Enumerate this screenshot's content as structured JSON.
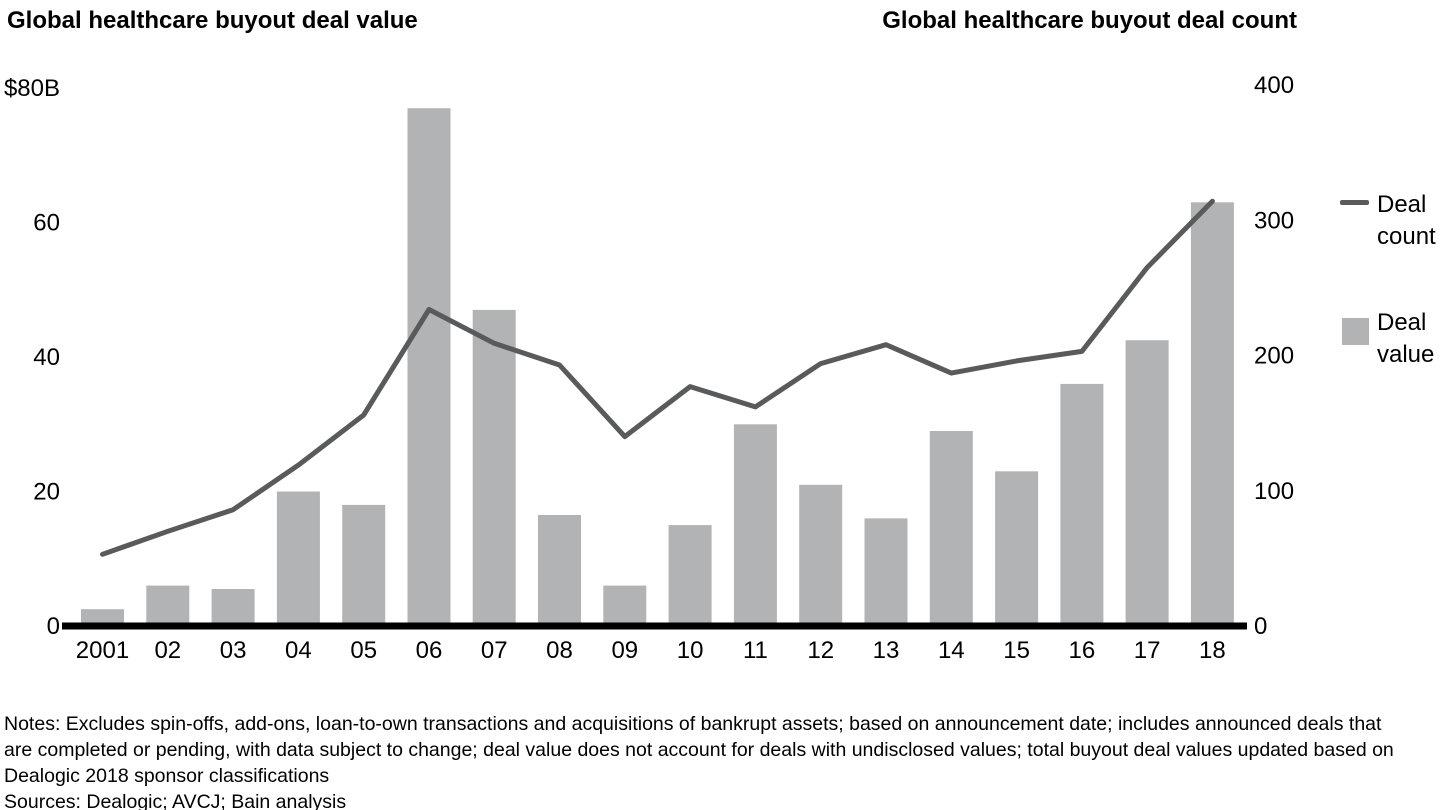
{
  "titles": {
    "left": "Global healthcare buyout deal value",
    "right": "Global healthcare buyout deal count"
  },
  "legend": {
    "deal_count_label": "Deal count",
    "deal_value_label": "Deal value"
  },
  "colors": {
    "bar": "#b1b3b5",
    "line": "#595a5c",
    "axis": "#000000",
    "text": "#000000"
  },
  "chart_data": {
    "type": "bar+line",
    "categories": [
      "2001",
      "02",
      "03",
      "04",
      "05",
      "06",
      "07",
      "08",
      "09",
      "10",
      "11",
      "12",
      "13",
      "14",
      "15",
      "16",
      "17",
      "18"
    ],
    "series": [
      {
        "name": "Deal value",
        "type": "bar",
        "axis": "left",
        "unit": "$B",
        "values": [
          2.5,
          6,
          5.5,
          20,
          18,
          77,
          47,
          16.5,
          6,
          15,
          30,
          21,
          16,
          29,
          23,
          36,
          42.5,
          63
        ]
      },
      {
        "name": "Deal count",
        "type": "line",
        "axis": "right",
        "unit": "deals",
        "values": [
          53,
          70,
          86,
          119,
          156,
          234,
          209,
          193,
          140,
          177,
          162,
          194,
          208,
          187,
          196,
          203,
          265,
          314
        ]
      }
    ],
    "left_axis": {
      "title": "Global healthcare buyout deal value",
      "range": [
        0,
        80
      ],
      "ticks": [
        80,
        60,
        40,
        20,
        0
      ],
      "tick_labels": [
        "$80B",
        "60",
        "40",
        "20",
        "0"
      ]
    },
    "right_axis": {
      "title": "Global healthcare buyout deal count",
      "range": [
        0,
        400
      ],
      "ticks": [
        400,
        300,
        200,
        100,
        0
      ],
      "tick_labels": [
        "400",
        "300",
        "200",
        "100",
        "0"
      ]
    },
    "grid": false,
    "legend_position": "right"
  },
  "notes": {
    "lines": [
      "Notes: Excludes spin-offs, add-ons, loan-to-own transactions and acquisitions of bankrupt assets; based on announcement date; includes announced deals that",
      "are completed or pending, with data subject to change; deal value does not account for deals with undisclosed values; total buyout deal values updated based on",
      "Dealogic 2018 sponsor classifications",
      "Sources: Dealogic; AVCJ; Bain analysis"
    ]
  }
}
